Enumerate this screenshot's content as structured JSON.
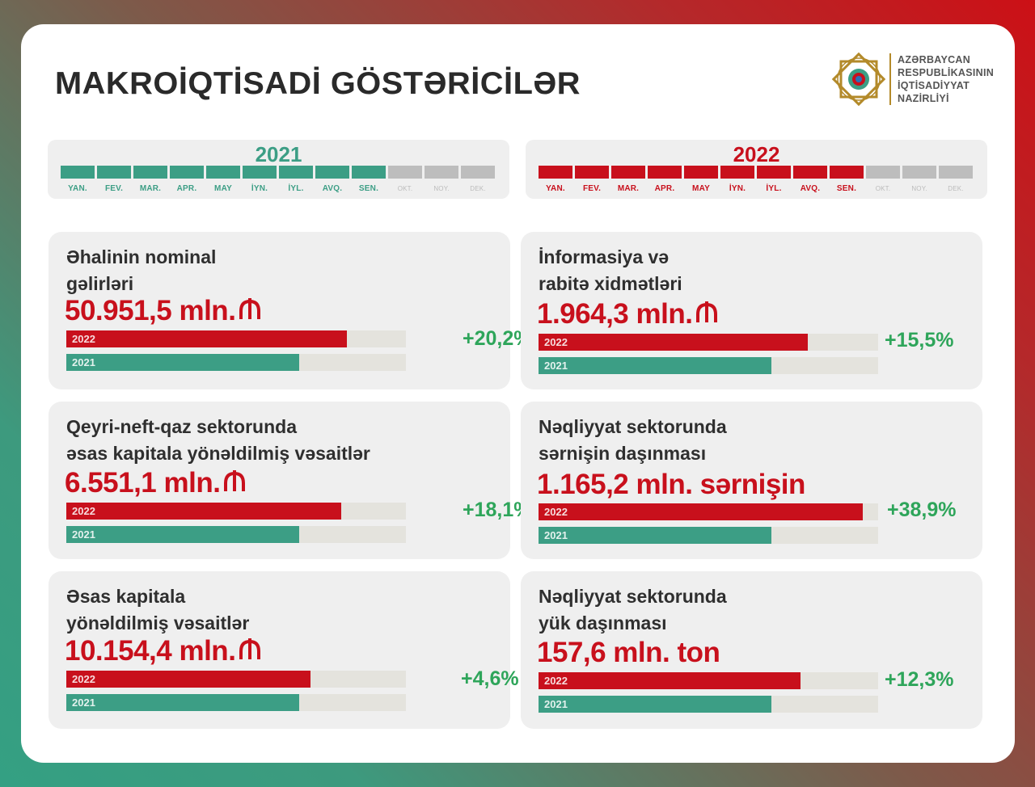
{
  "page": {
    "title": "MAKROİQTİSADİ GÖSTƏRİCİLƏR"
  },
  "logo": {
    "lines": [
      "AZƏRBAYCAN",
      "RESPUBLİKASININ",
      "İQTİSADİYYAT",
      "NAZİRLİYİ"
    ],
    "icon": "ministry-emblem"
  },
  "colors": {
    "green": "#3c9e85",
    "red": "#c8101c",
    "grey": "#bdbdbd",
    "percent": "#2ea55a"
  },
  "timelines": [
    {
      "year": "2021",
      "color": "#3c9e85",
      "months": [
        "YAN.",
        "FEV.",
        "MAR.",
        "APR.",
        "MAY",
        "İYN.",
        "İYL.",
        "AVQ.",
        "SEN.",
        "OKT.",
        "NOY.",
        "DEK."
      ],
      "active_months": 9
    },
    {
      "year": "2022",
      "color": "#c8101c",
      "months": [
        "YAN.",
        "FEV.",
        "MAR.",
        "APR.",
        "MAY",
        "İYN.",
        "İYL.",
        "AVQ.",
        "SEN.",
        "OKT.",
        "NOY.",
        "DEK."
      ],
      "active_months": 9
    }
  ],
  "indicators": [
    {
      "title_line1": "Əhalinin nominal",
      "title_line2": "gəlirləri",
      "value": "50.951,5 mln.",
      "currency_icon": "manat-icon",
      "change": "+20,2%",
      "bar_2022_label": "2022",
      "bar_2021_label": "2021",
      "bar_2022_fraction": 0.826,
      "bar_2021_fraction": 0.686
    },
    {
      "title_line1": "İnformasiya və",
      "title_line2": "rabitə xidmətləri",
      "value": "1.964,3 mln.",
      "currency_icon": "manat-icon",
      "change": "+15,5%",
      "bar_2022_label": "2022",
      "bar_2021_label": "2021",
      "bar_2022_fraction": 0.792,
      "bar_2021_fraction": 0.686
    },
    {
      "title_line1": "Qeyri-neft-qaz sektorunda",
      "title_line2": "əsas kapitala yönəldilmiş vəsaitlər",
      "value": "6.551,1 mln.",
      "currency_icon": "manat-icon",
      "change": "+18,1%",
      "bar_2022_label": "2022",
      "bar_2021_label": "2021",
      "bar_2022_fraction": 0.81,
      "bar_2021_fraction": 0.686
    },
    {
      "title_line1": "Nəqliyyat sektorunda",
      "title_line2": "sərnişin daşınması",
      "value": "1.165,2 mln. sərnişin",
      "currency_icon": "",
      "change": "+38,9%",
      "bar_2022_label": "2022",
      "bar_2021_label": "2021",
      "bar_2022_fraction": 0.955,
      "bar_2021_fraction": 0.686
    },
    {
      "title_line1": "Əsas kapitala",
      "title_line2": "yönəldilmiş vəsaitlər",
      "value": "10.154,4 mln.",
      "currency_icon": "manat-icon",
      "change": "+4,6%",
      "bar_2022_label": "2022",
      "bar_2021_label": "2021",
      "bar_2022_fraction": 0.718,
      "bar_2021_fraction": 0.686
    },
    {
      "title_line1": "Nəqliyyat sektorunda",
      "title_line2": "yük daşınması",
      "value": "157,6 mln. ton",
      "currency_icon": "",
      "change": "+12,3%",
      "bar_2022_label": "2022",
      "bar_2021_label": "2021",
      "bar_2022_fraction": 0.772,
      "bar_2021_fraction": 0.686
    }
  ]
}
